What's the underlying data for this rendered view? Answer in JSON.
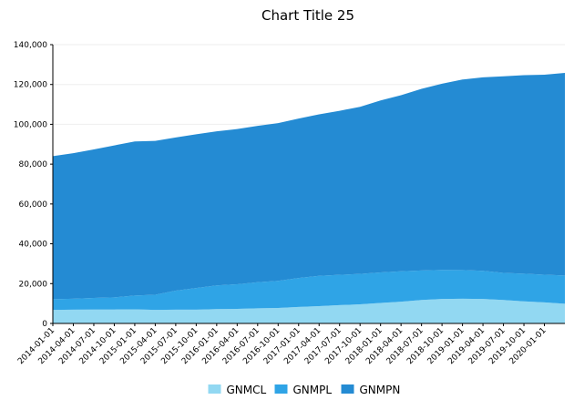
{
  "chart_data": {
    "type": "area",
    "stacked": true,
    "title": "Chart Title 25",
    "xlabel": "",
    "ylabel": "",
    "ylim": [
      0,
      140000
    ],
    "yticks": [
      0,
      20000,
      40000,
      60000,
      80000,
      100000,
      120000,
      140000
    ],
    "ytick_labels": [
      "0",
      "20,000",
      "40,000",
      "60,000",
      "80,000",
      "100,000",
      "120,000",
      "140,000"
    ],
    "xtick_labels": [
      "2014-01-01",
      "2014-04-01",
      "2014-07-01",
      "2014-10-01",
      "2015-01-01",
      "2015-04-01",
      "2015-07-01",
      "2015-10-01",
      "2016-01-01",
      "2016-04-01",
      "2016-07-01",
      "2016-10-01",
      "2017-01-01",
      "2017-04-01",
      "2017-07-01",
      "2017-10-01",
      "2018-01-01",
      "2018-04-01",
      "2018-07-01",
      "2018-10-01",
      "2019-01-01",
      "2019-04-01",
      "2019-07-01",
      "2019-10-01",
      "2020-01-01"
    ],
    "grid": "horizontal",
    "legend_position": "bottom",
    "x": [
      "2014-01-01",
      "2014-04-01",
      "2014-07-01",
      "2014-10-01",
      "2015-01-01",
      "2015-04-01",
      "2015-07-01",
      "2015-10-01",
      "2016-01-01",
      "2016-04-01",
      "2016-07-01",
      "2016-10-01",
      "2017-01-01",
      "2017-04-01",
      "2017-07-01",
      "2017-10-01",
      "2018-01-01",
      "2018-04-01",
      "2018-07-01",
      "2018-10-01",
      "2019-01-01",
      "2019-04-01",
      "2019-07-01",
      "2019-10-01",
      "2020-01-01",
      "2020-04-01"
    ],
    "series": [
      {
        "name": "GNMCL",
        "color": "#92d8f2",
        "values": [
          6800,
          6900,
          7000,
          7000,
          7100,
          6800,
          6900,
          6900,
          7200,
          7300,
          7600,
          7800,
          8300,
          8700,
          9200,
          9600,
          10300,
          10900,
          11800,
          12300,
          12400,
          12300,
          11800,
          11100,
          10600,
          9900
        ]
      },
      {
        "name": "GNMPL",
        "color": "#2fa4e6",
        "values": [
          5400,
          5500,
          5800,
          6100,
          6900,
          7600,
          9600,
          10900,
          11900,
          12400,
          13100,
          13600,
          14500,
          15200,
          15200,
          15300,
          15300,
          15300,
          14800,
          14600,
          14400,
          14100,
          13600,
          13900,
          13900,
          14200
        ]
      },
      {
        "name": "GNMPN",
        "color": "#248bd3",
        "values": [
          71800,
          73100,
          74600,
          76300,
          77400,
          77300,
          76900,
          77200,
          77400,
          77900,
          78500,
          79200,
          80100,
          81100,
          82400,
          83900,
          86400,
          88400,
          91200,
          93500,
          95700,
          97200,
          98700,
          99700,
          100400,
          101700
        ]
      }
    ]
  }
}
